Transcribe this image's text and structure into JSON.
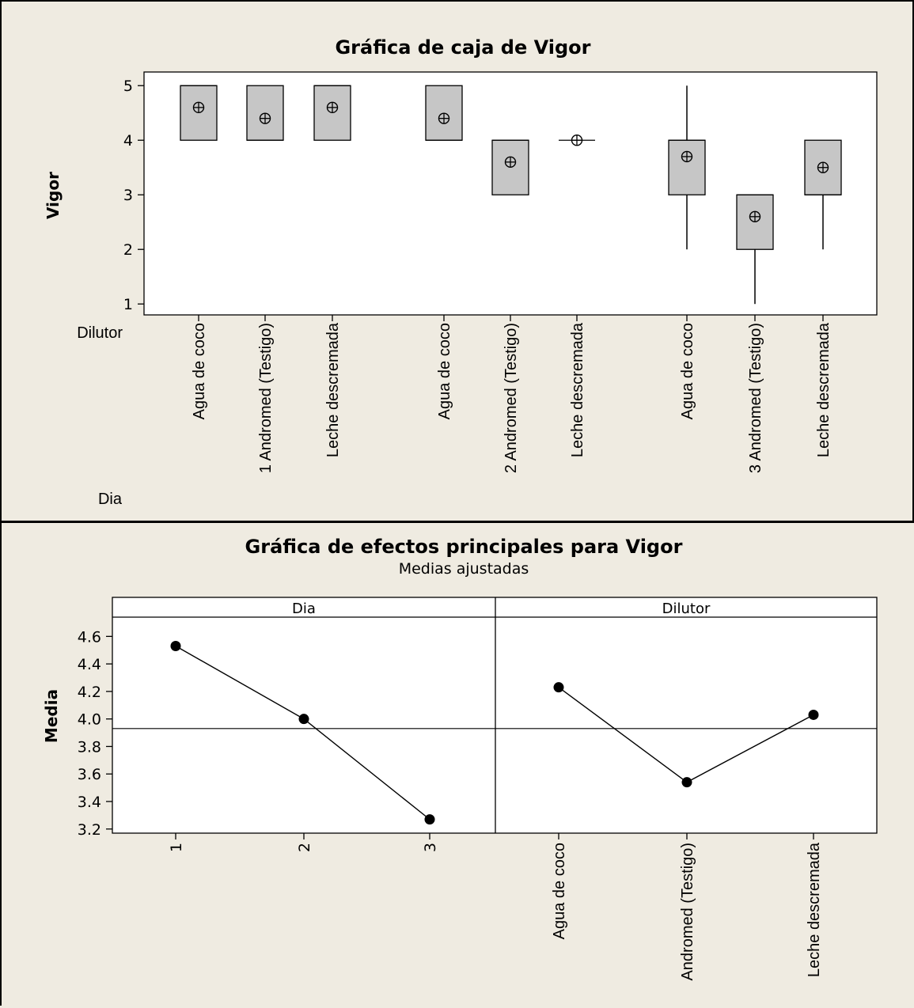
{
  "chart_data": [
    {
      "type": "box",
      "title": "Gráfica de caja de Vigor",
      "ylabel": "Vigor",
      "ylim": [
        0.8,
        5.25
      ],
      "yticks": [
        1,
        2,
        3,
        4,
        5
      ],
      "factor_labels": [
        "Dilutor",
        "Dia"
      ],
      "categories": [
        "Agua de coco",
        "Andromed (Testigo)",
        "Leche descremada",
        "Agua de coco",
        "Andromed (Testigo)",
        "Leche descremada",
        "Agua de coco",
        "Andromed (Testigo)",
        "Leche descremada"
      ],
      "groups": [
        {
          "dia": "1",
          "boxes": [
            {
              "dilutor": "Agua de coco",
              "min": 4,
              "q1": 4,
              "median": 5,
              "q3": 5,
              "max": 5,
              "mean": 4.6
            },
            {
              "dilutor": "Andromed (Testigo)",
              "min": 4,
              "q1": 4,
              "median": 4,
              "q3": 5,
              "max": 5,
              "mean": 4.4
            },
            {
              "dilutor": "Leche descremada",
              "min": 4,
              "q1": 4,
              "median": 5,
              "q3": 5,
              "max": 5,
              "mean": 4.6
            }
          ]
        },
        {
          "dia": "2",
          "boxes": [
            {
              "dilutor": "Agua de coco",
              "min": 4,
              "q1": 4,
              "median": 4,
              "q3": 5,
              "max": 5,
              "mean": 4.4
            },
            {
              "dilutor": "Andromed (Testigo)",
              "min": 3,
              "q1": 3,
              "median": 4,
              "q3": 4,
              "max": 4,
              "mean": 3.6
            },
            {
              "dilutor": "Leche descremada",
              "min": 4,
              "q1": 4,
              "median": 4,
              "q3": 4,
              "max": 4,
              "mean": 4.0
            }
          ]
        },
        {
          "dia": "3",
          "boxes": [
            {
              "dilutor": "Agua de coco",
              "min": 2,
              "q1": 3,
              "median": 4,
              "q3": 4,
              "max": 5,
              "mean": 3.7
            },
            {
              "dilutor": "Andromed (Testigo)",
              "min": 1,
              "q1": 2,
              "median": 3,
              "q3": 3,
              "max": 3,
              "mean": 2.6
            },
            {
              "dilutor": "Leche descremada",
              "min": 2,
              "q1": 3,
              "median": 3,
              "q3": 4,
              "max": 4,
              "mean": 3.5
            }
          ]
        }
      ]
    },
    {
      "type": "line",
      "title": "Gráfica de efectos principales para Vigor",
      "subtitle": "Medias ajustadas",
      "ylabel": "Media",
      "ylim": [
        3.17,
        4.74
      ],
      "yticks": [
        3.2,
        3.4,
        3.6,
        3.8,
        4.0,
        4.2,
        4.4,
        4.6
      ],
      "ytick_labels": [
        "3.2",
        "3.4",
        "3.6",
        "3.8",
        "4.0",
        "4.2",
        "4.4",
        "4.6"
      ],
      "grand_mean": 3.93,
      "panels": [
        {
          "name": "Dia",
          "categories": [
            "1",
            "2",
            "3"
          ],
          "values": [
            4.53,
            4.0,
            3.27
          ]
        },
        {
          "name": "Dilutor",
          "categories": [
            "Agua de coco",
            "Andromed (Testigo)",
            "Leche descremada"
          ],
          "values": [
            4.23,
            3.54,
            4.03
          ]
        }
      ]
    }
  ]
}
